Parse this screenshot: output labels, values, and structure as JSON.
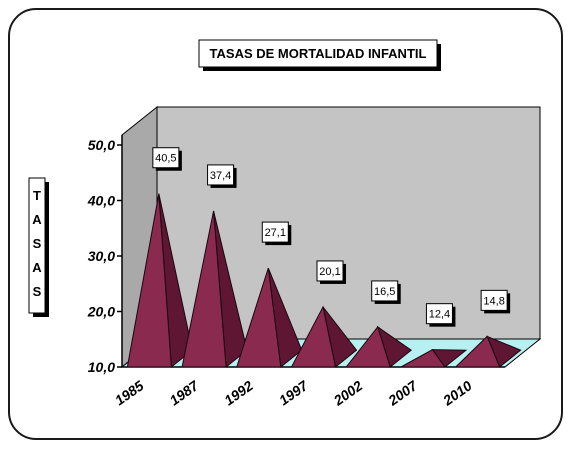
{
  "chart_data": {
    "type": "bar",
    "style": "3d-pyramid",
    "title": "TASAS DE MORTALIDAD INFANTIL",
    "ylabel": "TASAS",
    "categories": [
      "1985",
      "1987",
      "1992",
      "1997",
      "2002",
      "2007",
      "2010"
    ],
    "values": [
      40.5,
      37.4,
      27.1,
      20.1,
      16.5,
      12.4,
      14.8
    ],
    "value_labels": [
      "40,5",
      "37,4",
      "27,1",
      "20,1",
      "16,5",
      "12,4",
      "14,8"
    ],
    "y_ticks": [
      "10,0",
      "20,0",
      "30,0",
      "40,0",
      "50,0"
    ],
    "ylim": [
      10,
      50
    ],
    "grid": false,
    "colors": {
      "wall": "#c4c4c4",
      "floor": "#b7f0f0",
      "pyramid_light": "#8a2a4e",
      "pyramid_dark": "#5e1632",
      "pyramid_edge": "#1a0610"
    }
  }
}
